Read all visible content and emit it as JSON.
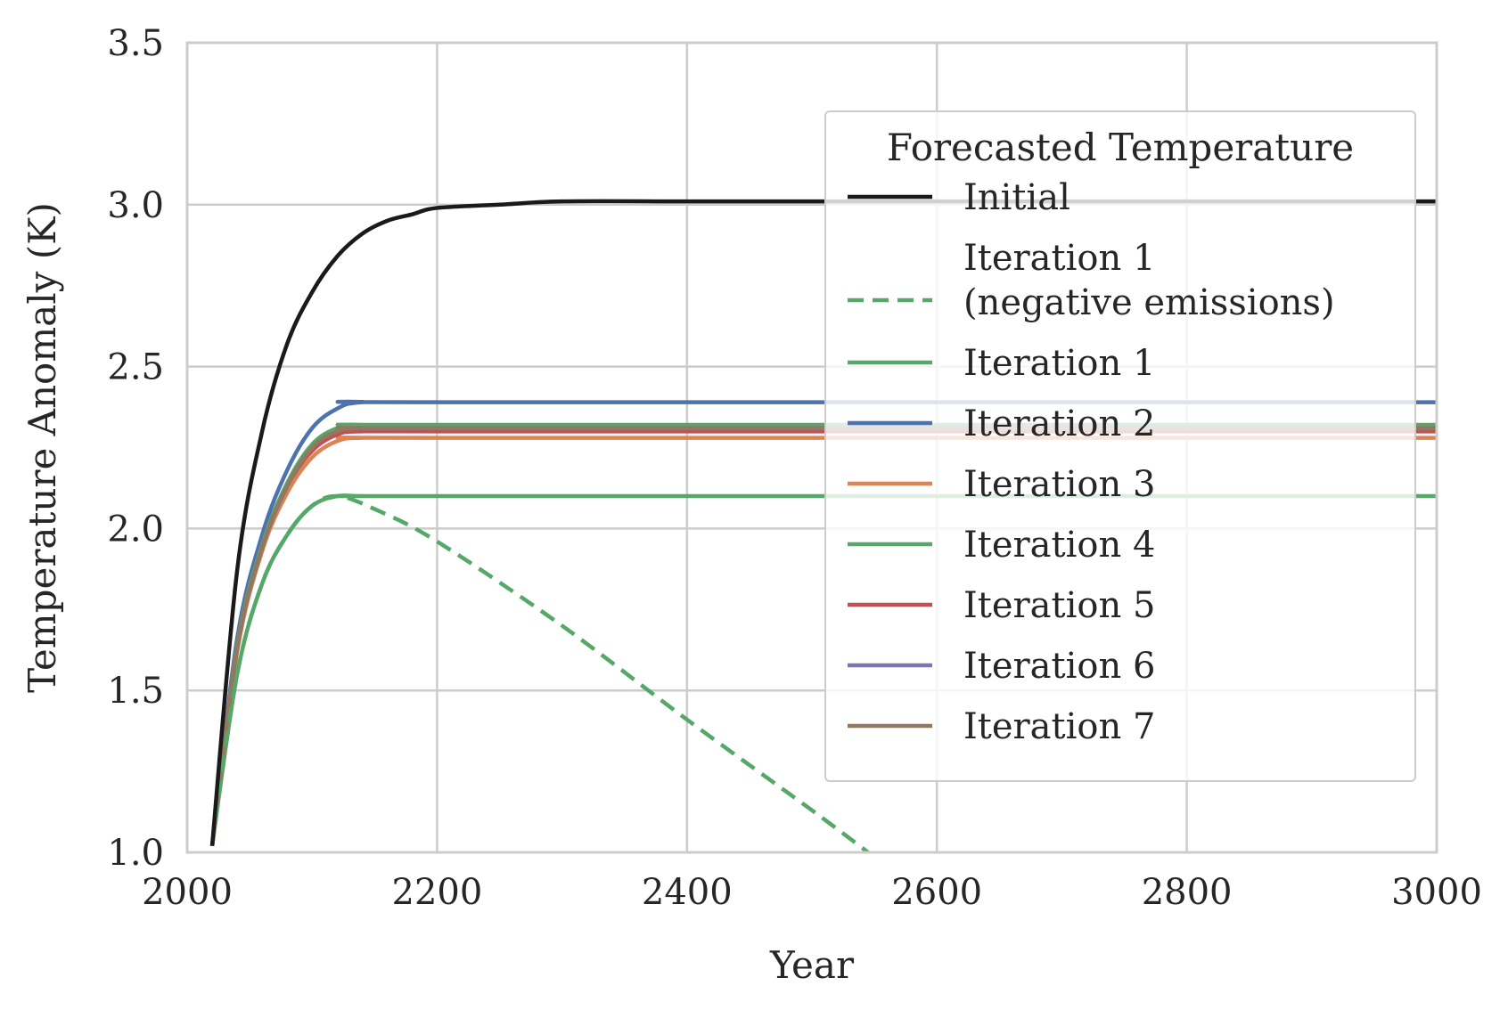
{
  "chart_data": {
    "type": "line",
    "xlabel": "Year",
    "ylabel": "Temperature Anomaly (K)",
    "xlim": [
      2000,
      3000
    ],
    "ylim": [
      1.0,
      3.5
    ],
    "xticks": [
      "2000",
      "2200",
      "2400",
      "2600",
      "2800",
      "3000"
    ],
    "yticks": [
      "1.0",
      "1.5",
      "2.0",
      "2.5",
      "3.0",
      "3.5"
    ],
    "grid": true,
    "legend": {
      "title": "Forecasted Temperature",
      "placement": "right"
    },
    "series": [
      {
        "name": "Initial",
        "color": "#1a1a1a",
        "dashed": false,
        "x": [
          2020,
          2040,
          2060,
          2080,
          2100,
          2120,
          2140,
          2160,
          2180,
          2200,
          2250,
          2300,
          2400,
          2500,
          2600,
          2700,
          2800,
          2900,
          3000
        ],
        "y": [
          1.02,
          1.87,
          2.3,
          2.57,
          2.73,
          2.84,
          2.91,
          2.95,
          2.97,
          2.99,
          3.0,
          3.01,
          3.01,
          3.01,
          3.01,
          3.01,
          3.01,
          3.01,
          3.01
        ]
      },
      {
        "name": "Iteration 1\n(negative emissions)",
        "color": "#55a868",
        "dashed": true,
        "x": [
          2020,
          2040,
          2060,
          2080,
          2100,
          2120,
          2150,
          2200,
          2300,
          2400,
          2500,
          2545
        ],
        "y": [
          1.02,
          1.55,
          1.83,
          1.98,
          2.07,
          2.1,
          2.06,
          1.96,
          1.7,
          1.41,
          1.13,
          1.0
        ]
      },
      {
        "name": "Iteration 1",
        "color": "#55a868",
        "dashed": false,
        "x": [
          2020,
          2040,
          2060,
          2080,
          2100,
          2120,
          2140,
          2200,
          3000
        ],
        "y": [
          1.02,
          1.55,
          1.83,
          1.98,
          2.07,
          2.1,
          2.1,
          2.1,
          2.1
        ]
      },
      {
        "name": "Iteration 2",
        "color": "#4c72b0",
        "dashed": false,
        "x": [
          2020,
          2040,
          2060,
          2080,
          2100,
          2120,
          2140,
          2200,
          3000
        ],
        "y": [
          1.02,
          1.66,
          1.98,
          2.18,
          2.31,
          2.37,
          2.39,
          2.39,
          2.39
        ]
      },
      {
        "name": "Iteration 3",
        "color": "#dd8452",
        "dashed": false,
        "x": [
          2020,
          2040,
          2060,
          2080,
          2100,
          2120,
          2140,
          2200,
          3000
        ],
        "y": [
          1.02,
          1.62,
          1.93,
          2.11,
          2.22,
          2.27,
          2.28,
          2.28,
          2.28
        ]
      },
      {
        "name": "Iteration 4",
        "color": "#55a868",
        "dashed": false,
        "x": [
          2020,
          2040,
          2060,
          2080,
          2100,
          2120,
          2140,
          2200,
          3000
        ],
        "y": [
          1.02,
          1.64,
          1.95,
          2.14,
          2.26,
          2.31,
          2.32,
          2.32,
          2.32
        ]
      },
      {
        "name": "Iteration 5",
        "color": "#c44e52",
        "dashed": false,
        "x": [
          2020,
          2040,
          2060,
          2080,
          2100,
          2120,
          2140,
          2200,
          3000
        ],
        "y": [
          1.02,
          1.63,
          1.94,
          2.13,
          2.24,
          2.29,
          2.3,
          2.3,
          2.3
        ]
      },
      {
        "name": "Iteration 6",
        "color": "#8172b3",
        "dashed": false,
        "x": [
          2020,
          2040,
          2060,
          2080,
          2100,
          2120,
          2140,
          2200,
          3000
        ],
        "y": [
          1.02,
          1.63,
          1.94,
          2.13,
          2.25,
          2.3,
          2.31,
          2.31,
          2.31
        ]
      },
      {
        "name": "Iteration 7",
        "color": "#937860",
        "dashed": false,
        "x": [
          2020,
          2040,
          2060,
          2080,
          2100,
          2120,
          2140,
          2200,
          3000
        ],
        "y": [
          1.02,
          1.63,
          1.94,
          2.13,
          2.25,
          2.3,
          2.31,
          2.31,
          2.31
        ]
      }
    ]
  }
}
